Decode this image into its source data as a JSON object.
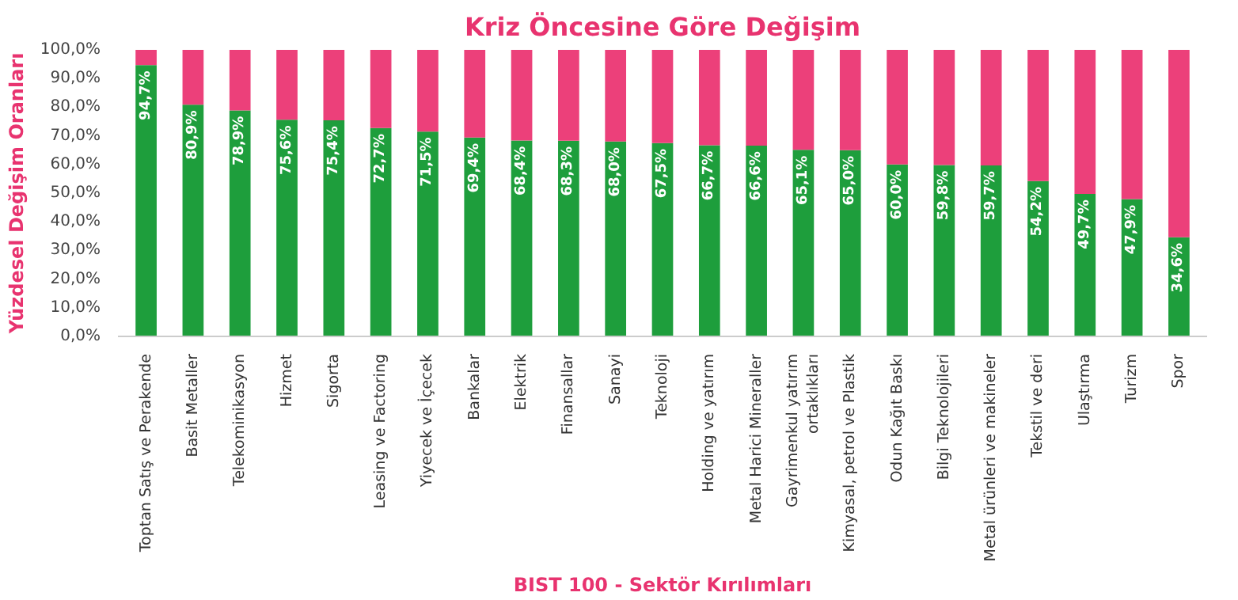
{
  "chart_data": {
    "type": "bar",
    "stacked": true,
    "title": "Kriz Öncesine Göre Değişim",
    "xlabel": "BIST 100 - Sektör Kırılımları",
    "ylabel": "Yüzdesel Değişim Oranları",
    "categories": [
      "Toptan Satış ve Perakende",
      "Basit Metaller",
      "Telekominikasyon",
      "Hizmet",
      "Sigorta",
      "Leasing ve Factoring",
      "Yiyecek ve İçecek",
      "Bankalar",
      "Elektrik",
      "Finansallar",
      "Sanayi",
      "Teknoloji",
      "Holding ve yatırım",
      "Metal Harici Mineraller",
      "Gayrimenkul yatırım ortaklıkları",
      "Kimyasal, petrol ve Plastik",
      "Odun Kağıt Baskı",
      "Bilgi Teknolojileri",
      "Metal ürünleri ve makineler",
      "Tekstil ve deri",
      "Ulaştırma",
      "Turizm",
      "Spor"
    ],
    "series": [
      {
        "color": "#1e9e3c",
        "values": [
          94.7,
          80.9,
          78.9,
          75.6,
          75.4,
          72.7,
          71.5,
          69.4,
          68.4,
          68.3,
          68.0,
          67.5,
          66.7,
          66.6,
          65.1,
          65.0,
          60.0,
          59.8,
          59.7,
          54.2,
          49.7,
          47.9,
          34.6
        ],
        "value_labels": [
          "94,7%",
          "80,9%",
          "78,9%",
          "75,6%",
          "75,4%",
          "72,7%",
          "71,5%",
          "69,4%",
          "68,4%",
          "68,3%",
          "68,0%",
          "67,5%",
          "66,7%",
          "66,6%",
          "65,1%",
          "65,0%",
          "60,0%",
          "59,8%",
          "59,7%",
          "54,2%",
          "49,7%",
          "47,9%",
          "34,6%"
        ]
      },
      {
        "color": "#ec407a",
        "values": [
          5.3,
          19.1,
          21.1,
          24.4,
          24.6,
          27.3,
          28.5,
          30.6,
          31.6,
          31.7,
          32.0,
          32.5,
          33.3,
          33.4,
          34.9,
          35.0,
          40.0,
          40.2,
          40.3,
          45.8,
          50.3,
          52.1,
          65.4
        ]
      }
    ],
    "ylim": [
      0,
      100
    ],
    "yticks": [
      {
        "value": 0,
        "label": "0,0%"
      },
      {
        "value": 10,
        "label": "10,0%"
      },
      {
        "value": 20,
        "label": "20,0%"
      },
      {
        "value": 30,
        "label": "30,0%"
      },
      {
        "value": 40,
        "label": "40,0%"
      },
      {
        "value": 50,
        "label": "50,0%"
      },
      {
        "value": 60,
        "label": "60,0%"
      },
      {
        "value": 70,
        "label": "70,0%"
      },
      {
        "value": 80,
        "label": "80,0%"
      },
      {
        "value": 90,
        "label": "90,0%"
      },
      {
        "value": 100,
        "label": "100,0%"
      }
    ],
    "grid": false
  }
}
